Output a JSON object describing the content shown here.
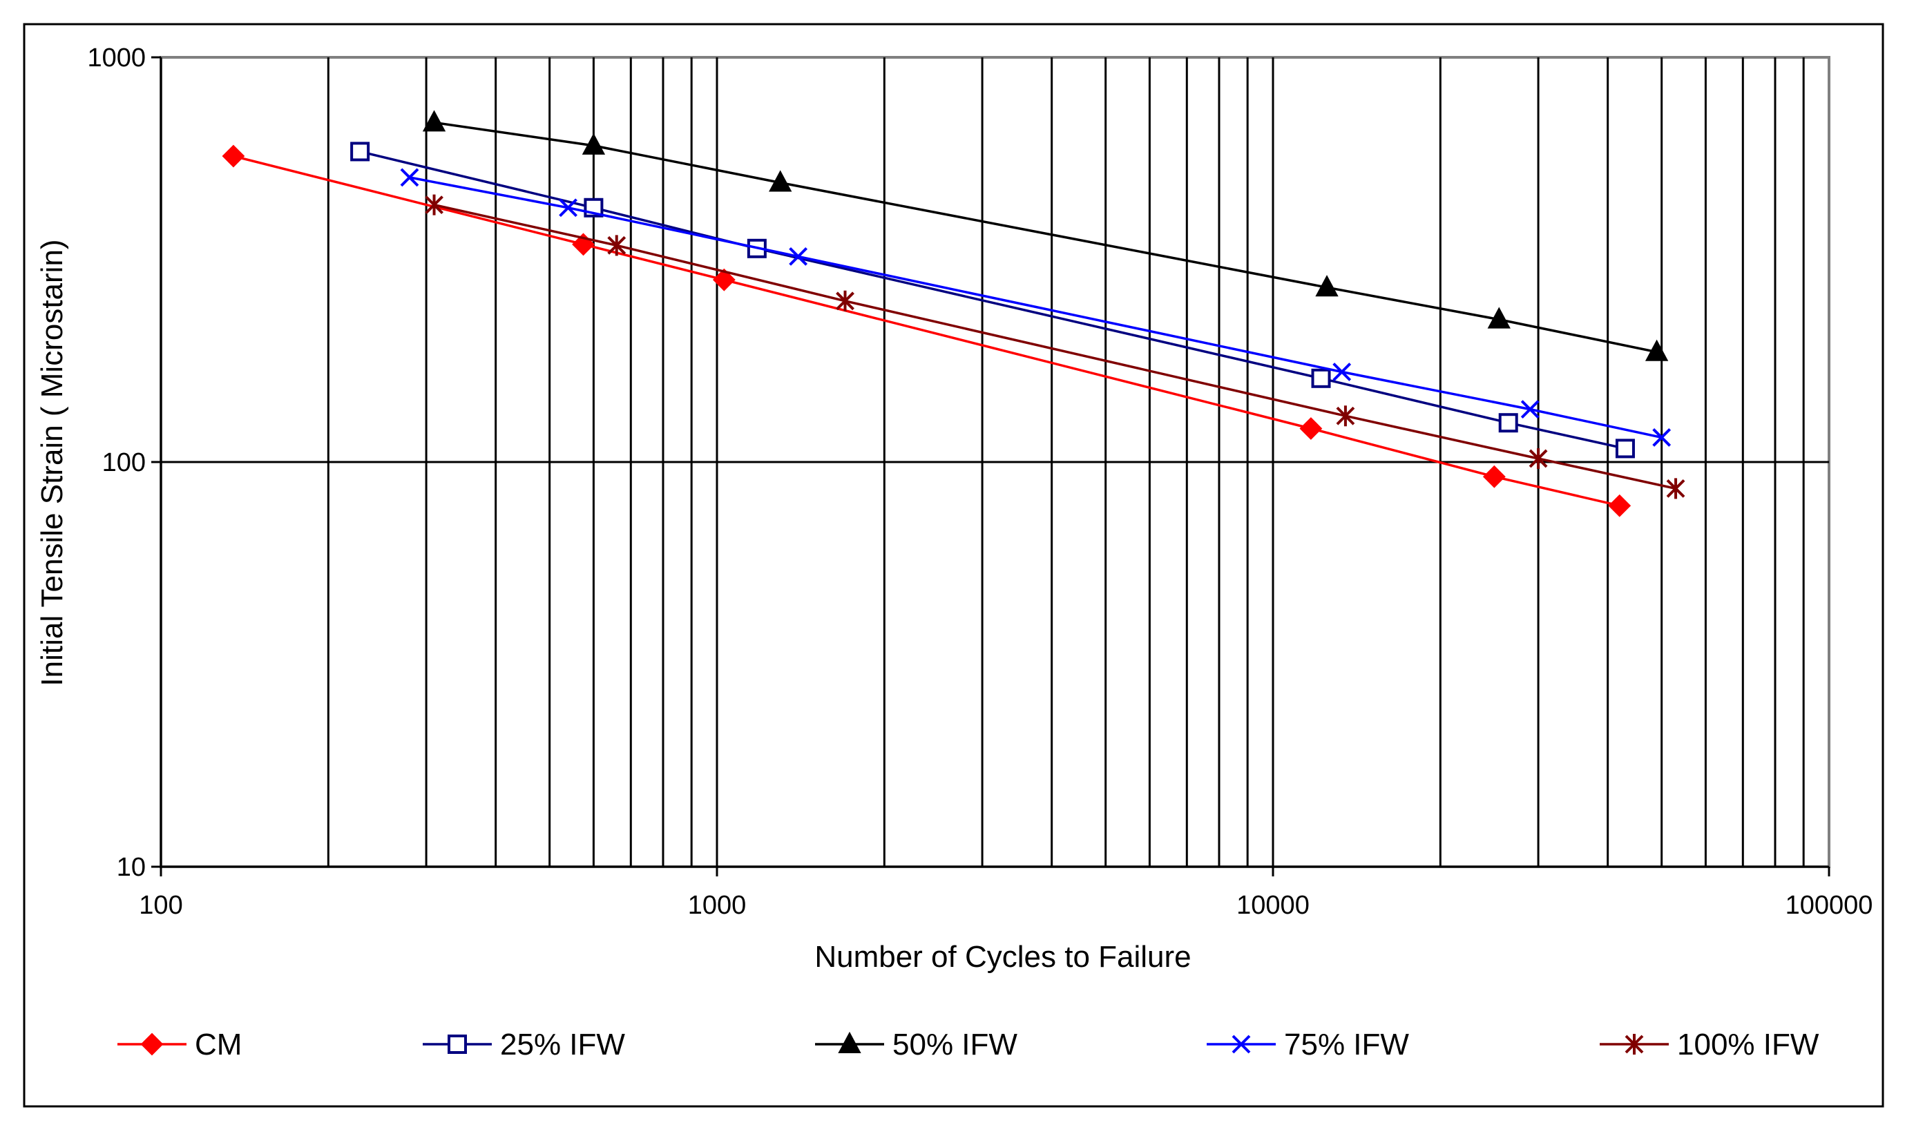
{
  "chart_data": {
    "type": "line",
    "xscale": "log",
    "yscale": "log",
    "xlim": [
      100,
      100000
    ],
    "ylim": [
      10,
      1000
    ],
    "xticks": [
      {
        "value": 100,
        "label": "100"
      },
      {
        "value": 1000,
        "label": "1000"
      },
      {
        "value": 10000,
        "label": "10000"
      },
      {
        "value": 100000,
        "label": "100000"
      }
    ],
    "yticks": [
      {
        "value": 10,
        "label": "10"
      },
      {
        "value": 100,
        "label": "100"
      },
      {
        "value": 1000,
        "label": "1000"
      }
    ],
    "xlabel": "Number of Cycles to Failure",
    "ylabel": "Initial Tensile Strain ( Microstarin)",
    "grid": {
      "vertical_minor": true,
      "horizontal_major": true
    },
    "legend_position": "bottom",
    "series": [
      {
        "name": "CM",
        "color": "#ff0000",
        "marker": "diamond",
        "points": [
          [
            135,
            570
          ],
          [
            575,
            345
          ],
          [
            1030,
            282
          ],
          [
            11700,
            121
          ],
          [
            25000,
            92
          ],
          [
            42000,
            78
          ]
        ]
      },
      {
        "name": "25% IFW",
        "color": "#000080",
        "marker": "square-open",
        "points": [
          [
            228,
            585
          ],
          [
            600,
            425
          ],
          [
            1180,
            337
          ],
          [
            12200,
            161
          ],
          [
            26500,
            125
          ],
          [
            43000,
            108
          ]
        ]
      },
      {
        "name": "50% IFW",
        "color": "#000000",
        "marker": "triangle",
        "points": [
          [
            310,
            690
          ],
          [
            600,
            605
          ],
          [
            1300,
            490
          ],
          [
            12500,
            270
          ],
          [
            25500,
            225
          ],
          [
            49000,
            187
          ]
        ]
      },
      {
        "name": "75% IFW",
        "color": "#0000ff",
        "marker": "x",
        "points": [
          [
            280,
            505
          ],
          [
            540,
            425
          ],
          [
            1400,
            322
          ],
          [
            13300,
            167
          ],
          [
            29000,
            135
          ],
          [
            50000,
            115
          ]
        ]
      },
      {
        "name": "100% IFW",
        "color": "#800000",
        "marker": "star",
        "points": [
          [
            310,
            432
          ],
          [
            660,
            343
          ],
          [
            1700,
            250
          ],
          [
            13500,
            130
          ],
          [
            30000,
            102
          ],
          [
            53000,
            86
          ]
        ]
      }
    ]
  }
}
